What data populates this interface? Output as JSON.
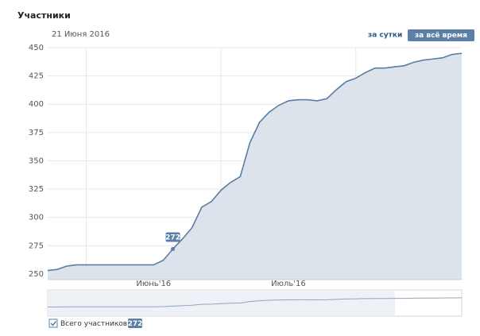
{
  "chart_data": {
    "type": "area",
    "title": "Участники",
    "tooltip_date": "21 Июня 2016",
    "buttons": [
      "за сутки",
      "за всё время"
    ],
    "categories": [
      null,
      null,
      null,
      null,
      null,
      null,
      null,
      null,
      null,
      null,
      null,
      "Июнь'16",
      null,
      null,
      null,
      null,
      null,
      null,
      null,
      null,
      null,
      null,
      null,
      null,
      null,
      "Июль'16",
      null,
      null,
      null,
      null,
      null,
      null,
      null,
      null,
      null,
      null,
      null,
      null,
      null,
      null,
      null,
      null,
      null,
      null
    ],
    "series": [
      {
        "name": "Всего участников",
        "color": "#597da3",
        "values": [
          253,
          254,
          257,
          258,
          258,
          258,
          258,
          258,
          258,
          258,
          258,
          258,
          262,
          272,
          281,
          291,
          309,
          314,
          324,
          331,
          336,
          366,
          384,
          393,
          399,
          403,
          404,
          404,
          403,
          405,
          413,
          420,
          423,
          428,
          432,
          432,
          433,
          434,
          437,
          439,
          440,
          441,
          444,
          445
        ]
      }
    ],
    "ylim": [
      245,
      450
    ],
    "yticks": [
      250,
      275,
      300,
      325,
      350,
      375,
      400,
      425,
      450
    ],
    "grid": true
  }
}
